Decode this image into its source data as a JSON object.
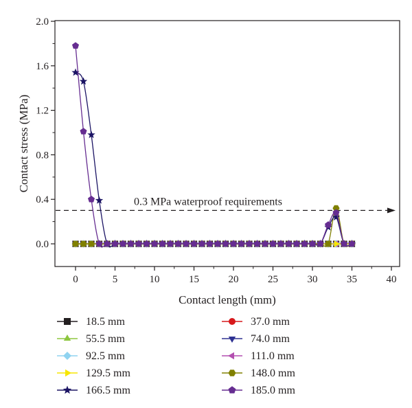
{
  "chart_data": {
    "type": "line",
    "xlabel": "Contact length (mm)",
    "ylabel": "Contact stress (MPa)",
    "xlim": [
      -3,
      40
    ],
    "ylim": [
      -0.2,
      2.0
    ],
    "xticks": [
      0,
      5,
      10,
      15,
      20,
      25,
      30,
      35,
      40
    ],
    "yticks": [
      0.0,
      0.4,
      0.8,
      1.2,
      1.6,
      2.0
    ],
    "xtick_labels": [
      "0",
      "5",
      "10",
      "15",
      "20",
      "25",
      "30",
      "35",
      "40"
    ],
    "ytick_labels": [
      "0.0",
      "0.4",
      "0.8",
      "1.2",
      "1.6",
      "2.0"
    ],
    "grid": false,
    "legend_position": "bottom",
    "reference_line": {
      "y": 0.3,
      "label": "0.3 MPa waterproof requirements"
    },
    "x": [
      0,
      1,
      2,
      3,
      4,
      5,
      6,
      7,
      8,
      9,
      10,
      11,
      12,
      13,
      14,
      15,
      16,
      17,
      18,
      19,
      20,
      21,
      22,
      23,
      24,
      25,
      26,
      27,
      28,
      29,
      30,
      31,
      32,
      33,
      34,
      35
    ],
    "series": [
      {
        "name": "18.5 mm",
        "color": "#231f20",
        "marker": "square",
        "values": [
          0,
          0,
          0,
          0,
          0,
          0,
          0,
          0,
          0,
          0,
          0,
          0,
          0,
          0,
          0,
          0,
          0,
          0,
          0,
          0,
          0,
          0,
          0,
          0,
          0,
          0,
          0,
          0,
          0,
          0,
          0,
          0,
          0,
          0,
          0,
          0
        ]
      },
      {
        "name": "37.0 mm",
        "color": "#d7191c",
        "marker": "circle",
        "values": [
          0,
          0,
          0,
          0,
          0,
          0,
          0,
          0,
          0,
          0,
          0,
          0,
          0,
          0,
          0,
          0,
          0,
          0,
          0,
          0,
          0,
          0,
          0,
          0,
          0,
          0,
          0,
          0,
          0,
          0,
          0,
          0,
          0,
          0,
          0,
          0
        ]
      },
      {
        "name": "55.5 mm",
        "color": "#8dc63f",
        "marker": "triangle-up",
        "values": [
          0,
          0,
          0,
          0,
          0,
          0,
          0,
          0,
          0,
          0,
          0,
          0,
          0,
          0,
          0,
          0,
          0,
          0,
          0,
          0,
          0,
          0,
          0,
          0,
          0,
          0,
          0,
          0,
          0,
          0,
          0,
          0,
          0,
          0,
          0,
          0
        ]
      },
      {
        "name": "74.0 mm",
        "color": "#2e3192",
        "marker": "triangle-down",
        "values": [
          0,
          0,
          0,
          0,
          0,
          0,
          0,
          0,
          0,
          0,
          0,
          0,
          0,
          0,
          0,
          0,
          0,
          0,
          0,
          0,
          0,
          0,
          0,
          0,
          0,
          0,
          0,
          0,
          0,
          0,
          0,
          0,
          0,
          0,
          0,
          0
        ]
      },
      {
        "name": "92.5 mm",
        "color": "#8fd3f0",
        "marker": "diamond",
        "values": [
          0,
          0,
          0,
          0,
          0,
          0,
          0,
          0,
          0,
          0,
          0,
          0,
          0,
          0,
          0,
          0,
          0,
          0,
          0,
          0,
          0,
          0,
          0,
          0,
          0,
          0,
          0,
          0,
          0,
          0,
          0,
          0,
          0,
          0,
          0,
          0
        ]
      },
      {
        "name": "111.0 mm",
        "color": "#b34fb0",
        "marker": "triangle-left",
        "values": [
          0,
          0,
          0,
          0,
          0,
          0,
          0,
          0,
          0,
          0,
          0,
          0,
          0,
          0,
          0,
          0,
          0,
          0,
          0,
          0,
          0,
          0,
          0,
          0,
          0,
          0,
          0,
          0,
          0,
          0,
          0,
          0,
          0,
          0,
          0,
          0
        ]
      },
      {
        "name": "129.5 mm",
        "color": "#f7e600",
        "marker": "triangle-right",
        "values": [
          0,
          0,
          0,
          0,
          0,
          0,
          0,
          0,
          0,
          0,
          0,
          0,
          0,
          0,
          0,
          0,
          0,
          0,
          0,
          0,
          0,
          0,
          0,
          0,
          0,
          0,
          0,
          0,
          0,
          0,
          0,
          0,
          0,
          0,
          0,
          0
        ]
      },
      {
        "name": "148.0 mm",
        "color": "#808000",
        "marker": "hexagon",
        "values": [
          0,
          0,
          0,
          0,
          0,
          0,
          0,
          0,
          0,
          0,
          0,
          0,
          0,
          0,
          0,
          0,
          0,
          0,
          0,
          0,
          0,
          0,
          0,
          0,
          0,
          0,
          0,
          0,
          0,
          0,
          0,
          0,
          0,
          0.32,
          0,
          0
        ]
      },
      {
        "name": "166.5 mm",
        "color": "#1b1464",
        "marker": "star",
        "values": [
          1.54,
          1.46,
          0.98,
          0.39,
          0,
          0,
          0,
          0,
          0,
          0,
          0,
          0,
          0,
          0,
          0,
          0,
          0,
          0,
          0,
          0,
          0,
          0,
          0,
          0,
          0,
          0,
          0,
          0,
          0,
          0,
          0,
          0,
          0.15,
          0.24,
          0,
          0
        ]
      },
      {
        "name": "185.0 mm",
        "color": "#662d91",
        "marker": "pentagon",
        "values": [
          1.78,
          1.01,
          0.4,
          0,
          0,
          0,
          0,
          0,
          0,
          0,
          0,
          0,
          0,
          0,
          0,
          0,
          0,
          0,
          0,
          0,
          0,
          0,
          0,
          0,
          0,
          0,
          0,
          0,
          0,
          0,
          0,
          0,
          0.17,
          0.28,
          0,
          0
        ]
      }
    ]
  }
}
